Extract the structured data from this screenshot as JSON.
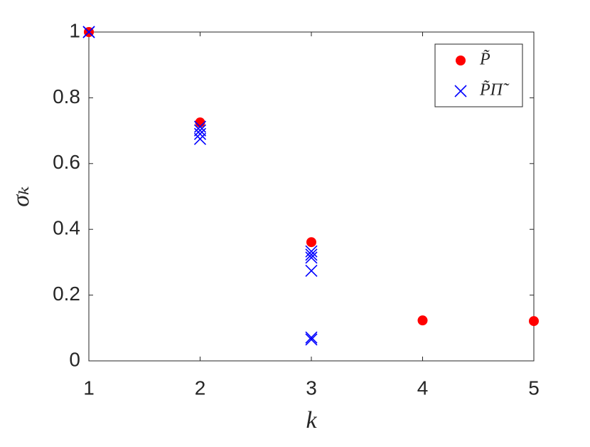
{
  "chart_data": {
    "type": "scatter",
    "xlabel": "k",
    "ylabel": "σₖ",
    "xlim": [
      1,
      5
    ],
    "ylim": [
      0,
      1
    ],
    "xticks": [
      1,
      2,
      3,
      4,
      5
    ],
    "yticks": [
      0,
      0.2,
      0.4,
      0.6,
      0.8,
      1
    ],
    "legend": "upper-right",
    "series": [
      {
        "name": "P̃",
        "color": "#ff0000",
        "marker": "dot",
        "x": [
          1,
          2,
          3,
          4,
          5
        ],
        "values": [
          1,
          0.725,
          0.361,
          0.123,
          0.121
        ]
      },
      {
        "name": "P̃Π̃",
        "color": "#0000ff",
        "marker": "cross",
        "x": [
          1,
          1,
          2,
          2,
          2,
          2,
          3,
          3,
          3,
          3,
          3,
          3
        ],
        "values": [
          1,
          1,
          0.712,
          0.701,
          0.69,
          0.675,
          0.333,
          0.323,
          0.314,
          0.274,
          0.071,
          0.065
        ]
      }
    ]
  }
}
